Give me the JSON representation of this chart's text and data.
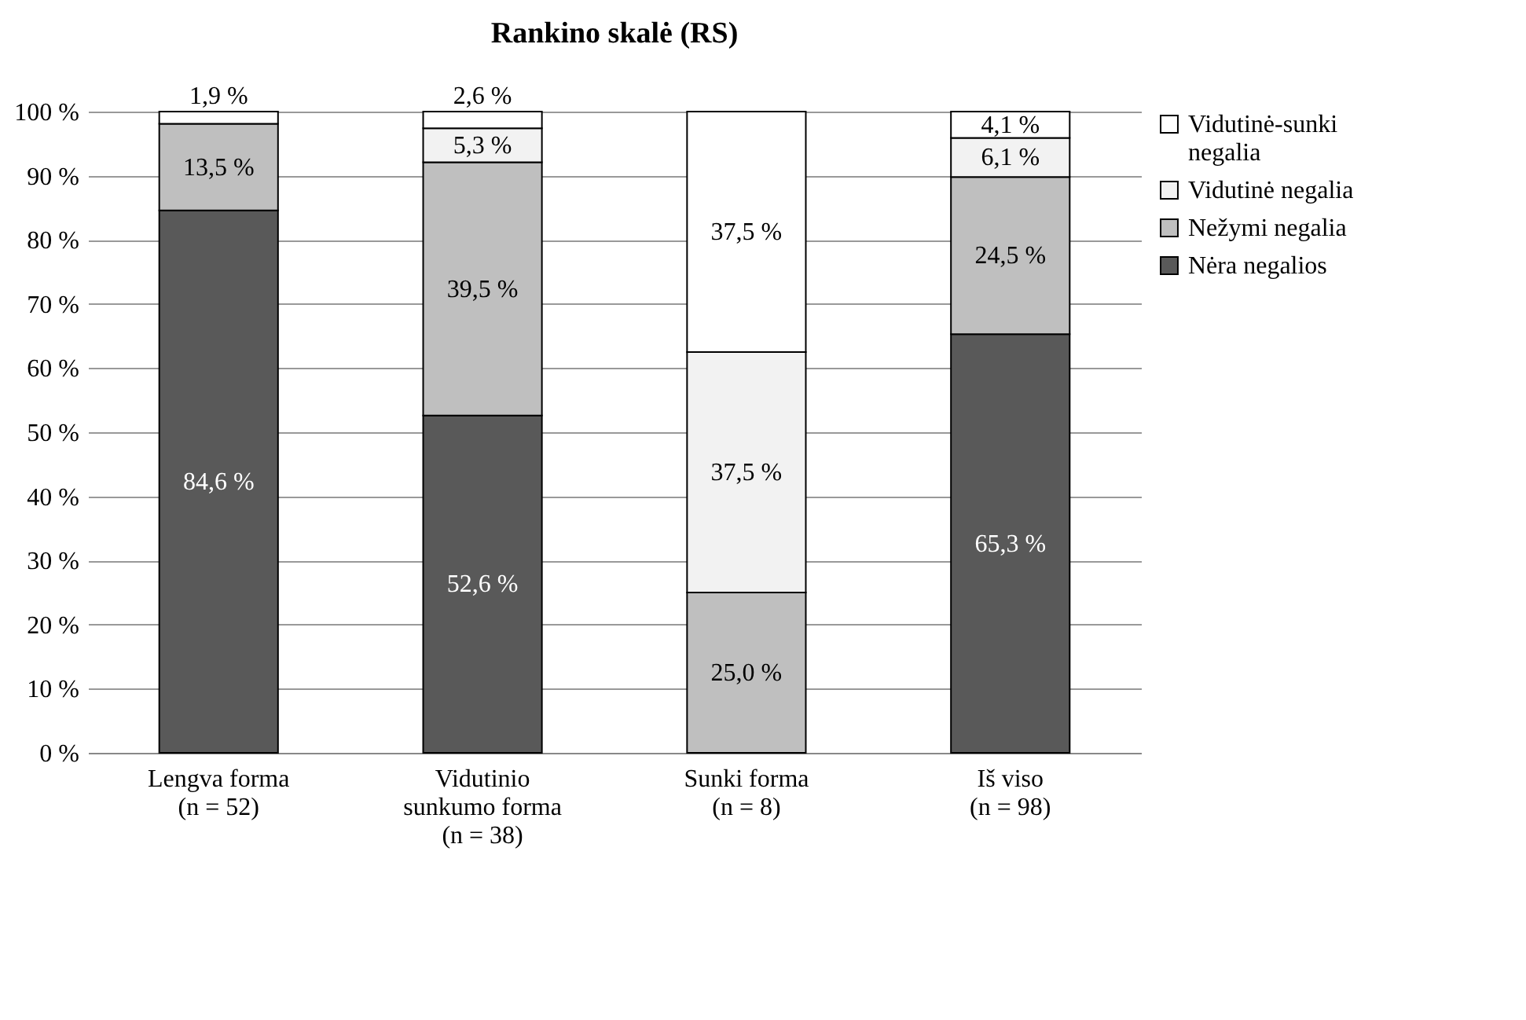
{
  "chart_data": {
    "type": "bar",
    "title": "Rankino skalė (RS)",
    "stacked": true,
    "categories": [
      "Lengva forma\n(n = 52)",
      "Vidutinio\nsunkumo forma\n(n = 38)",
      "Sunki forma\n(n = 8)",
      "Iš viso\n(n = 98)"
    ],
    "series": [
      {
        "name": "Nėra negalios",
        "color": "#595959",
        "values": [
          84.6,
          52.6,
          null,
          65.3
        ],
        "value_labels": [
          "84,6 %",
          "52,6 %",
          null,
          "65,3 %"
        ]
      },
      {
        "name": "Nežymi negalia",
        "color": "#bfbfbf",
        "values": [
          13.5,
          39.5,
          25.0,
          24.5
        ],
        "value_labels": [
          "13,5 %",
          "39,5 %",
          "25,0 %",
          "24,5 %"
        ]
      },
      {
        "name": "Vidutinė negalia",
        "color": "#f2f2f2",
        "values": [
          null,
          5.3,
          37.5,
          6.1
        ],
        "value_labels": [
          null,
          "5,3 %",
          "37,5 %",
          "6,1 %"
        ]
      },
      {
        "name": "Vidutinė-sunki\nnegalia",
        "color": "#ffffff",
        "values": [
          1.9,
          2.6,
          37.5,
          4.1
        ],
        "value_labels": [
          "1,9 %",
          "2,6 %",
          "37,5 %",
          "4,1 %"
        ]
      }
    ],
    "ylim": [
      0,
      100
    ],
    "yticks": [
      {
        "value": 0,
        "label": "0 %"
      },
      {
        "value": 10,
        "label": "10 %"
      },
      {
        "value": 20,
        "label": "20 %"
      },
      {
        "value": 30,
        "label": "30 %"
      },
      {
        "value": 40,
        "label": "40 %"
      },
      {
        "value": 50,
        "label": "50 %"
      },
      {
        "value": 60,
        "label": "60 %"
      },
      {
        "value": 70,
        "label": "70 %"
      },
      {
        "value": 80,
        "label": "80 %"
      },
      {
        "value": 90,
        "label": "90 %"
      },
      {
        "value": 100,
        "label": "100 %"
      }
    ],
    "grid": "y",
    "legend": "right"
  }
}
